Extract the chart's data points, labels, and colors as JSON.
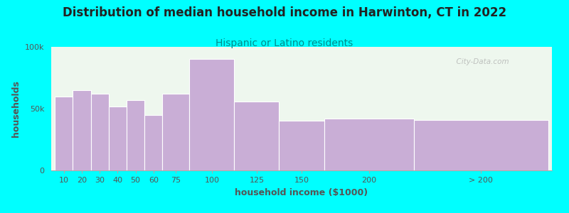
{
  "title": "Distribution of median household income in Harwinton, CT in 2022",
  "subtitle": "Hispanic or Latino residents",
  "xlabel": "household income ($1000)",
  "ylabel": "households",
  "background_color": "#00FFFF",
  "bar_color": "#c9aed6",
  "bar_edge_color": "#ffffff",
  "categories": [
    "10",
    "20",
    "30",
    "40",
    "50",
    "60",
    "75",
    "100",
    "125",
    "150",
    "200",
    "> 200"
  ],
  "bin_lefts": [
    0,
    10,
    20,
    30,
    40,
    50,
    60,
    75,
    100,
    125,
    150,
    200
  ],
  "bin_widths": [
    10,
    10,
    10,
    10,
    10,
    10,
    15,
    25,
    25,
    25,
    50,
    75
  ],
  "values": [
    60000,
    65000,
    62000,
    52000,
    57000,
    45000,
    62000,
    90000,
    56000,
    40000,
    42000,
    41000
  ],
  "ylim": [
    0,
    100000
  ],
  "ytick_labels": [
    "0",
    "50k",
    "100k"
  ],
  "ytick_values": [
    0,
    50000,
    100000
  ],
  "watermark": "  City-Data.com",
  "title_fontsize": 12,
  "subtitle_fontsize": 10,
  "axis_label_fontsize": 9,
  "tick_fontsize": 8,
  "title_color": "#222222",
  "subtitle_color": "#008B8B",
  "axis_label_color": "#555555",
  "tick_color": "#555555"
}
